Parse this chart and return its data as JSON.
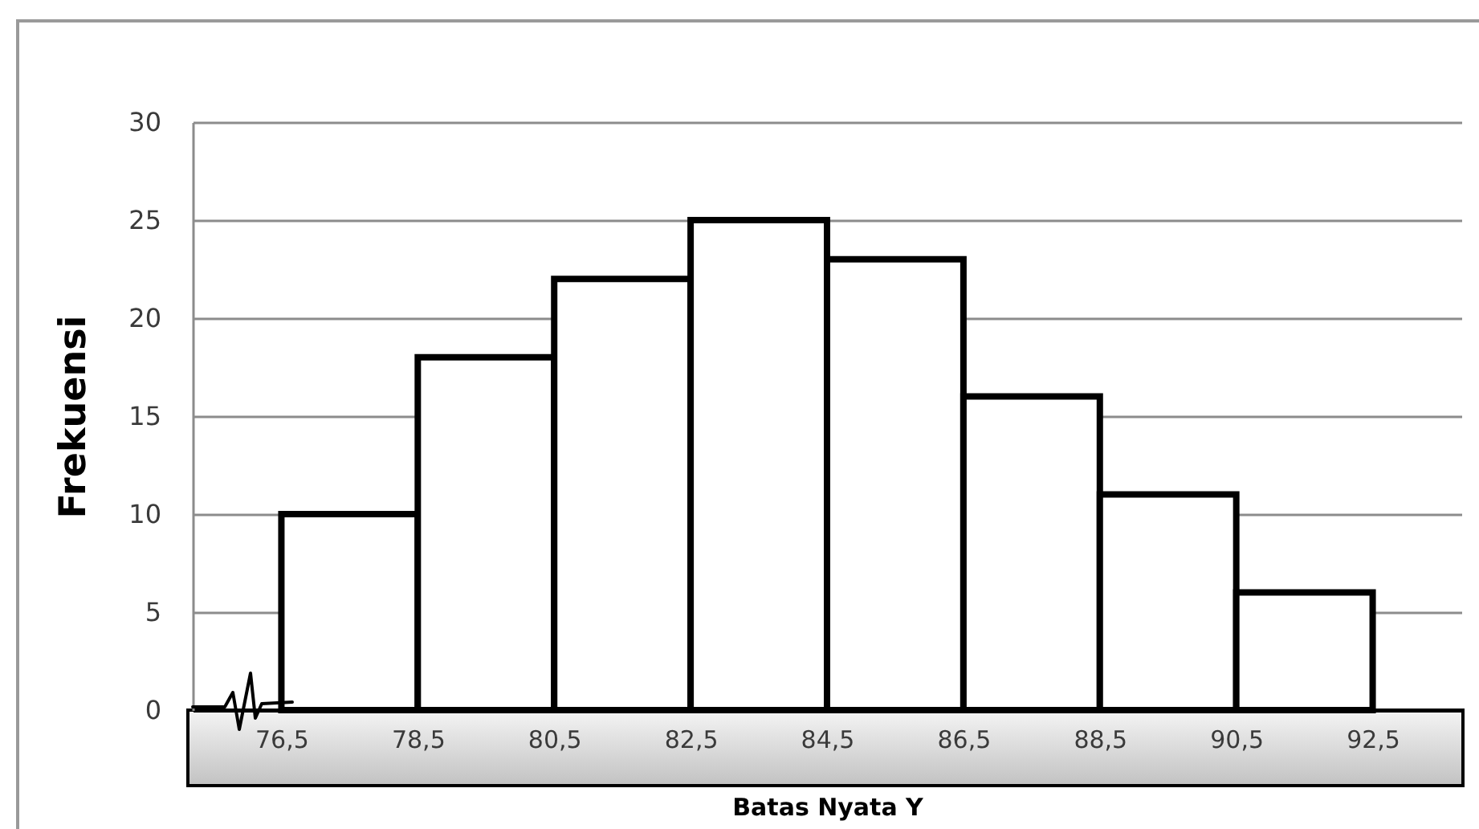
{
  "chart_data": {
    "type": "histogram",
    "xlabel": "Batas Nyata Y",
    "ylabel": "Frekuensi",
    "bins": [
      76.5,
      78.5,
      80.5,
      82.5,
      84.5,
      86.5,
      88.5,
      90.5,
      92.5
    ],
    "values": [
      10,
      18,
      22,
      25,
      23,
      16,
      11,
      6
    ],
    "xlim": [
      75.2,
      93.8
    ],
    "xticks": [
      {
        "value": 76.5,
        "label": "76,5"
      },
      {
        "value": 78.5,
        "label": "78,5"
      },
      {
        "value": 80.5,
        "label": "80,5"
      },
      {
        "value": 82.5,
        "label": "82,5"
      },
      {
        "value": 84.5,
        "label": "84,5"
      },
      {
        "value": 86.5,
        "label": "86,5"
      },
      {
        "value": 88.5,
        "label": "88,5"
      },
      {
        "value": 90.5,
        "label": "90,5"
      },
      {
        "value": 92.5,
        "label": "92,5"
      }
    ],
    "ylim": [
      0,
      30
    ],
    "yticks": [
      0,
      5,
      10,
      15,
      20,
      25,
      30
    ],
    "grid": "y"
  }
}
